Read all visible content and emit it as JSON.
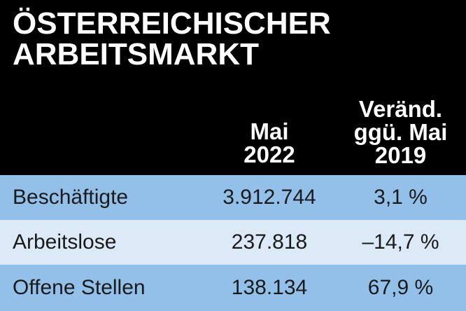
{
  "title": {
    "line1": "ÖSTERREICHISCHER",
    "line2": "ARBEITSMARKT"
  },
  "columns": {
    "col1": {
      "line1": "Mai",
      "line2": "2022"
    },
    "col2": {
      "line1": "Veränd.",
      "line2": "ggü. Mai",
      "line3": "2019"
    }
  },
  "rows": [
    {
      "label": "Beschäftigte",
      "value": "3.912.744",
      "change": "3,1 %"
    },
    {
      "label": "Arbeitslose",
      "value": "237.818",
      "change": "–14,7 %"
    },
    {
      "label": "Offene Stellen",
      "value": "138.134",
      "change": "67,9 %"
    }
  ],
  "colors": {
    "background": "#000000",
    "row_dark": "#92c0e8",
    "row_light": "#dceaf7",
    "header_text": "#ffffff"
  }
}
